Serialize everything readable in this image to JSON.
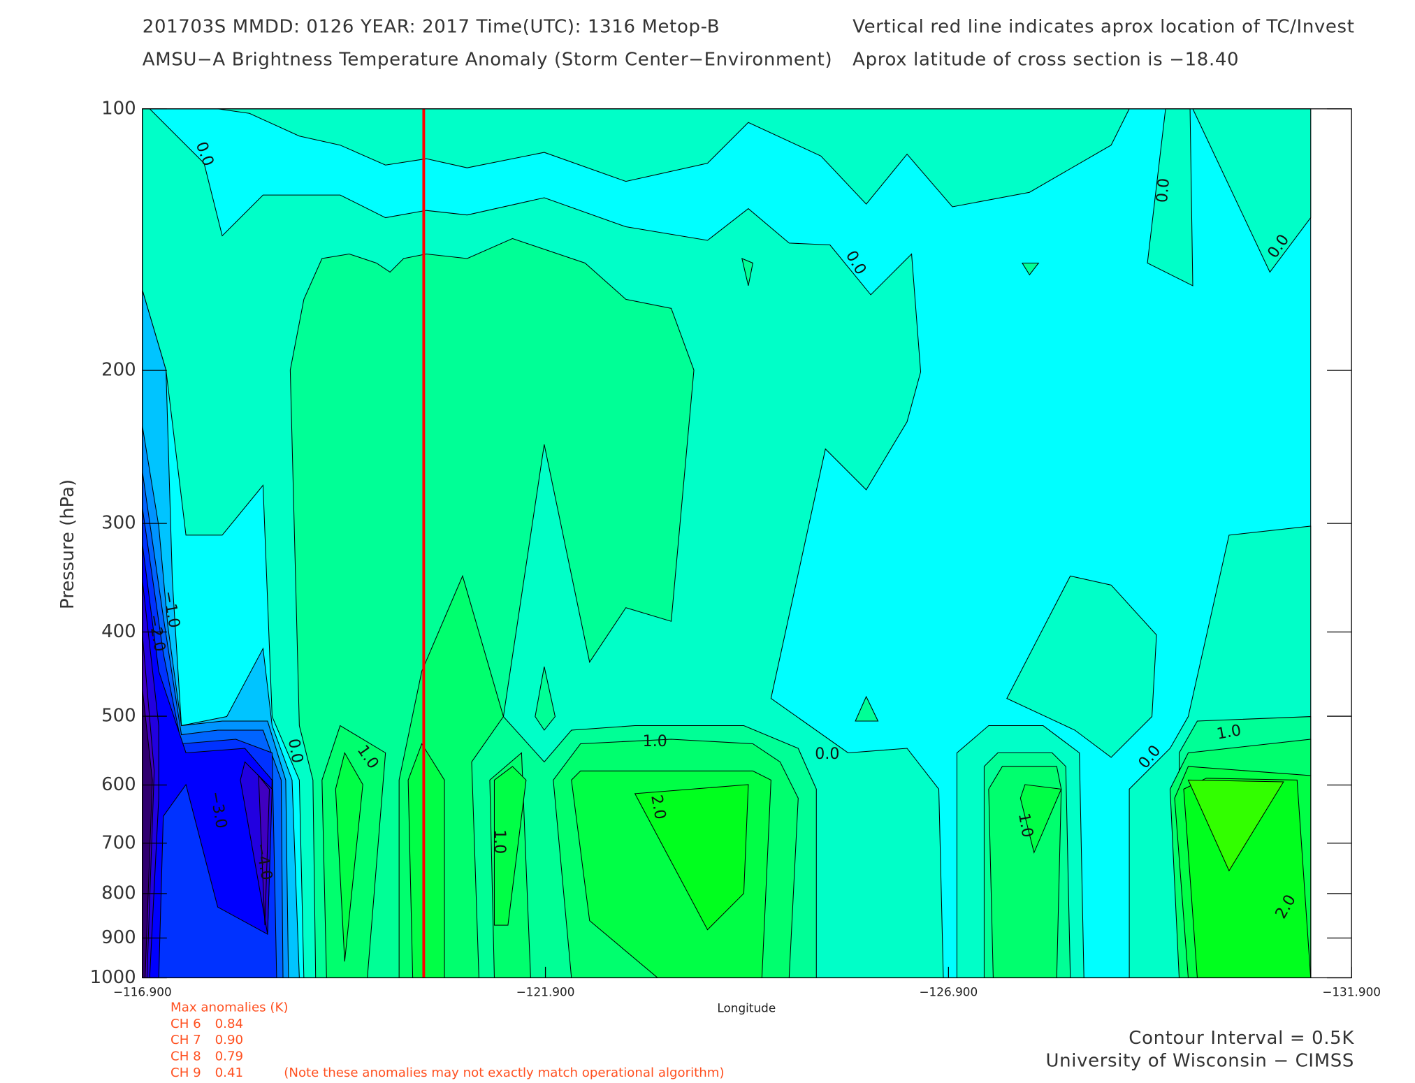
{
  "chart_data": {
    "type": "contour",
    "title": "201703S  MMDD: 0126 YEAR: 2017 Time(UTC): 1316 Metop-B",
    "subtitle": "AMSU−A Brightness Temperature Anomaly (Storm Center−Environment)",
    "note_right_1": "Vertical red line indicates aprox location of TC/Invest",
    "note_right_2": "Aprox latitude of cross section is −18.40",
    "x_label": "Longitude",
    "y_label": "Pressure (hPa)",
    "xlim": [
      -116.9,
      -131.9
    ],
    "xticks": [
      {
        "value": -116.9,
        "label": "−116.900"
      },
      {
        "value": -121.9,
        "label": "−121.900"
      },
      {
        "value": -126.9,
        "label": "−126.900"
      },
      {
        "value": -131.9,
        "label": "−131.900"
      }
    ],
    "ylim": [
      100,
      1000
    ],
    "y_scale": "log",
    "y_inverted": true,
    "yticks": [
      100,
      200,
      300,
      400,
      500,
      600,
      700,
      800,
      900,
      1000
    ],
    "tc_longitude": -120.39,
    "tc_line_color": "#ff0000",
    "levels": [
      {
        "level": -0.5,
        "color": "#00ffff"
      },
      {
        "level": 0.0,
        "color": "#00ffc8"
      },
      {
        "level": 0.5,
        "color": "#00ff96"
      },
      {
        "level": 1.0,
        "color": "#00ff6e"
      },
      {
        "level": 1.5,
        "color": "#00ff46"
      },
      {
        "level": 2.0,
        "color": "#00ff1e"
      },
      {
        "level": 2.5,
        "color": "#32ff00"
      },
      {
        "level": -1.0,
        "color": "#00c4ff"
      },
      {
        "level": -1.5,
        "color": "#0094ff"
      },
      {
        "level": -2.0,
        "color": "#0064ff"
      },
      {
        "level": -2.5,
        "color": "#0032ff"
      },
      {
        "level": -3.0,
        "color": "#0000ff"
      },
      {
        "level": -3.5,
        "color": "#2200e0"
      },
      {
        "level": -4.0,
        "color": "#4000c0"
      },
      {
        "level": -4.5,
        "color": "#300070"
      }
    ],
    "contour_labels": [
      {
        "value": 0,
        "label": "0.0"
      },
      {
        "value": 0,
        "label": "0.0"
      },
      {
        "value": 0,
        "label": "0.0"
      },
      {
        "value": 0,
        "label": "0.0"
      },
      {
        "value": 0,
        "label": "0.0"
      },
      {
        "value": 0,
        "label": "0.0"
      },
      {
        "value": 0,
        "label": "0.0"
      },
      {
        "value": 1,
        "label": "1.0"
      },
      {
        "value": 1,
        "label": "1.0"
      },
      {
        "value": 1,
        "label": "1.0"
      },
      {
        "value": 1,
        "label": "1.0"
      },
      {
        "value": 1,
        "label": "1.0"
      },
      {
        "value": 2,
        "label": "2.0"
      },
      {
        "value": 2,
        "label": "2.0"
      },
      {
        "value": -1,
        "label": "−1.0"
      },
      {
        "value": -2,
        "label": "−2.0"
      },
      {
        "value": -3,
        "label": "−3.0"
      },
      {
        "value": -4,
        "label": "−4.0"
      }
    ],
    "max_anomalies": {
      "title": "Max anomalies (K)",
      "channels": [
        {
          "name": "CH 6",
          "value": 0.84
        },
        {
          "name": "CH 7",
          "value": 0.9,
          "value_label": "0.90"
        },
        {
          "name": "CH 8",
          "value": 0.79
        },
        {
          "name": "CH 9",
          "value": 0.41
        }
      ],
      "note": "(Note these anomalies may not exactly match operational algorithm)",
      "color": "#ff5020"
    },
    "contour_interval": "Contour Interval = 0.5K",
    "credit": "University of Wisconsin − CIMSS"
  }
}
